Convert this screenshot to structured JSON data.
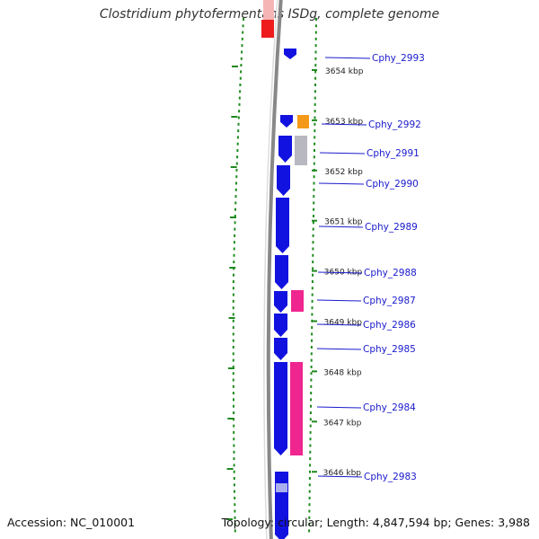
{
  "title": "Clostridium phytofermentans ISDg, complete genome",
  "accession_text": "Accession: NC_010001",
  "topology_text": "Topology: circular; Length: 4,847,594 bp; Genes: 3,988",
  "colors": {
    "cds": "#1212e0",
    "backbone": "#888888",
    "tick": "#1f8a1f",
    "label": "#1a1acc",
    "rrna": "#ee1c1c",
    "orange": "#f59a18",
    "gray": "#b8b8c0",
    "pink": "#ef2590"
  },
  "scale_ticks": [
    {
      "label": "3654 kbp",
      "kbp": 3654
    },
    {
      "label": "3653 kbp",
      "kbp": 3653
    },
    {
      "label": "3652 kbp",
      "kbp": 3652
    },
    {
      "label": "3651 kbp",
      "kbp": 3651
    },
    {
      "label": "3650 kbp",
      "kbp": 3650
    },
    {
      "label": "3649 kbp",
      "kbp": 3649
    },
    {
      "label": "3648 kbp",
      "kbp": 3648
    },
    {
      "label": "3647 kbp",
      "kbp": 3647
    },
    {
      "label": "3646 kbp",
      "kbp": 3646
    }
  ],
  "genes": [
    {
      "name": "Cphy_2993"
    },
    {
      "name": "Cphy_2992"
    },
    {
      "name": "Cphy_2991"
    },
    {
      "name": "Cphy_2990"
    },
    {
      "name": "Cphy_2989"
    },
    {
      "name": "Cphy_2988"
    },
    {
      "name": "Cphy_2987"
    },
    {
      "name": "Cphy_2986"
    },
    {
      "name": "Cphy_2985"
    },
    {
      "name": "Cphy_2984"
    },
    {
      "name": "Cphy_2983"
    }
  ]
}
